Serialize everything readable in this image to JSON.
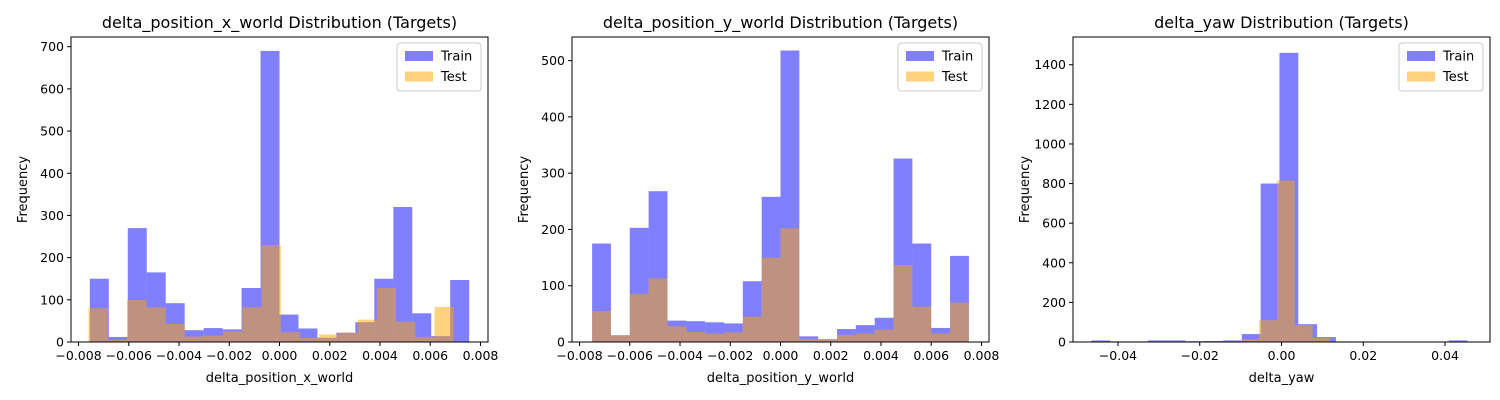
{
  "chart_data": [
    {
      "type": "bar",
      "title": "delta_position_x_world Distribution (Targets)",
      "xlabel": "delta_position_x_world",
      "ylabel": "Frequency",
      "xlim": [
        -0.0083,
        0.0083
      ],
      "ylim": [
        0,
        723
      ],
      "xticks": [
        -0.008,
        -0.006,
        -0.004,
        -0.002,
        0.0,
        0.002,
        0.004,
        0.006,
        0.008
      ],
      "xtick_labels": [
        "−0.008",
        "−0.006",
        "−0.004",
        "−0.002",
        "0.000",
        "0.002",
        "0.004",
        "0.006",
        "0.008"
      ],
      "yticks": [
        0,
        100,
        200,
        300,
        400,
        500,
        600,
        700
      ],
      "ytick_labels": [
        "0",
        "100",
        "200",
        "300",
        "400",
        "500",
        "600",
        "700"
      ],
      "legend": "upper right",
      "series": [
        {
          "name": "Train",
          "color": "#0000ff",
          "alpha": 0.5,
          "bin_start": -0.00755,
          "bin_width": 0.000755,
          "values": [
            150,
            12,
            270,
            165,
            92,
            28,
            33,
            30,
            128,
            690,
            65,
            32,
            10,
            22,
            47,
            150,
            320,
            68,
            14,
            147
          ]
        },
        {
          "name": "Test",
          "color": "#ffa500",
          "alpha": 0.5,
          "bin_start": -0.0076,
          "bin_width": 0.000765,
          "values": [
            80,
            5,
            100,
            82,
            43,
            13,
            15,
            25,
            82,
            230,
            23,
            10,
            18,
            22,
            53,
            128,
            48,
            12,
            83,
            0
          ]
        }
      ]
    },
    {
      "type": "bar",
      "title": "delta_position_y_world Distribution (Targets)",
      "xlabel": "delta_position_y_world",
      "ylabel": "Frequency",
      "xlim": [
        -0.0083,
        0.0083
      ],
      "ylim": [
        0,
        542
      ],
      "xticks": [
        -0.008,
        -0.006,
        -0.004,
        -0.002,
        0.0,
        0.002,
        0.004,
        0.006,
        0.008
      ],
      "xtick_labels": [
        "−0.008",
        "−0.006",
        "−0.004",
        "−0.002",
        "0.000",
        "0.002",
        "0.004",
        "0.006",
        "0.008"
      ],
      "yticks": [
        0,
        100,
        200,
        300,
        400,
        500
      ],
      "ytick_labels": [
        "0",
        "100",
        "200",
        "300",
        "400",
        "500"
      ],
      "legend": "upper right",
      "series": [
        {
          "name": "Train",
          "color": "#0000ff",
          "alpha": 0.5,
          "bin_start": -0.0075,
          "bin_width": 0.00075,
          "values": [
            175,
            12,
            203,
            268,
            38,
            37,
            35,
            33,
            108,
            258,
            518,
            10,
            5,
            23,
            30,
            43,
            326,
            175,
            25,
            153
          ]
        },
        {
          "name": "Test",
          "color": "#ffa500",
          "alpha": 0.5,
          "bin_start": -0.0075,
          "bin_width": 0.00075,
          "values": [
            55,
            12,
            85,
            113,
            28,
            18,
            15,
            17,
            45,
            150,
            202,
            5,
            5,
            13,
            15,
            22,
            137,
            63,
            15,
            70
          ]
        }
      ]
    },
    {
      "type": "bar",
      "title": "delta_yaw Distribution (Targets)",
      "xlabel": "delta_yaw",
      "ylabel": "Frequency",
      "xlim": [
        -0.051,
        0.051
      ],
      "ylim": [
        0,
        1540
      ],
      "xticks": [
        -0.04,
        -0.02,
        0.0,
        0.02,
        0.04
      ],
      "xtick_labels": [
        "−0.04",
        "−0.02",
        "0.00",
        "0.02",
        "0.04"
      ],
      "yticks": [
        0,
        200,
        400,
        600,
        800,
        1000,
        1200,
        1400
      ],
      "ytick_labels": [
        "0",
        "200",
        "400",
        "600",
        "800",
        "1000",
        "1200",
        "1400"
      ],
      "legend": "upper right",
      "series": [
        {
          "name": "Train",
          "color": "#0000ff",
          "alpha": 0.5,
          "bin_start": -0.0465,
          "bin_width": 0.0046,
          "values": [
            8,
            3,
            3,
            8,
            8,
            4,
            5,
            8,
            40,
            800,
            1460,
            90,
            25,
            3,
            3,
            2,
            2,
            2,
            2,
            8
          ]
        },
        {
          "name": "Test",
          "color": "#ffa500",
          "alpha": 0.5,
          "bin_start": -0.0446,
          "bin_width": 0.00435,
          "values": [
            3,
            2,
            2,
            3,
            3,
            3,
            3,
            3,
            15,
            110,
            815,
            85,
            20,
            3,
            2,
            2,
            2,
            2,
            2,
            3
          ]
        }
      ]
    }
  ]
}
